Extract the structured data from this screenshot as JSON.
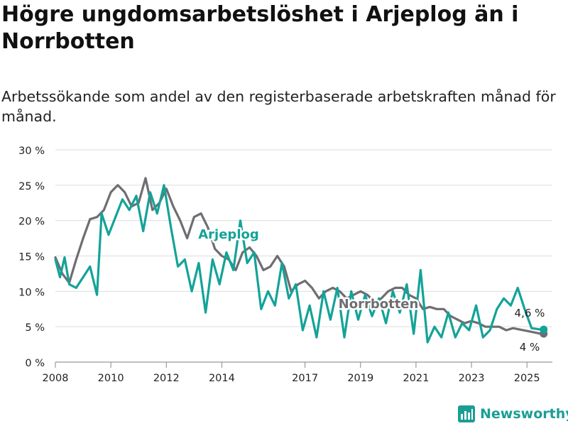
{
  "title": "Högre ungdomsarbetslöshet i Arjeplog än i Norrbotten",
  "subtitle": "Arbetssökande som andel av den registerbaserade arbetskraften månad för månad.",
  "brand": "Newsworthy",
  "colors": {
    "arjeplog": "#13a398",
    "norrbotten": "#6e6e72",
    "grid": "#dddddd",
    "text": "#222222",
    "brand": "#1a9e94"
  },
  "chart_data": {
    "type": "line",
    "yticks": [
      "0 %",
      "5 %",
      "10 %",
      "15 %",
      "20 %",
      "25 %",
      "30 %"
    ],
    "ylim": [
      0,
      30
    ],
    "xlim": [
      "2008-01",
      "2025-12"
    ],
    "xticks": [
      {
        "label": "2008",
        "date": "2008-01"
      },
      {
        "label": "2010",
        "date": "2010-01"
      },
      {
        "label": "2012",
        "date": "2012-01"
      },
      {
        "label": "2014",
        "date": "2014-01"
      },
      {
        "label": "2017",
        "date": "2017-01"
      },
      {
        "label": "2019",
        "date": "2019-01"
      },
      {
        "label": "2021",
        "date": "2021-01"
      },
      {
        "label": "2023",
        "date": "2023-01"
      },
      {
        "label": "2025",
        "date": "2025-01"
      }
    ],
    "grid": true,
    "series": [
      {
        "name": "Norrbotten",
        "end_label": "4 %",
        "data": [
          [
            "2008-01",
            14.8
          ],
          [
            "2008-04",
            12.5
          ],
          [
            "2008-07",
            11.2
          ],
          [
            "2008-10",
            14.5
          ],
          [
            "2009-01",
            17.5
          ],
          [
            "2009-04",
            20.2
          ],
          [
            "2009-07",
            20.5
          ],
          [
            "2009-10",
            21.5
          ],
          [
            "2010-01",
            24.0
          ],
          [
            "2010-04",
            25.0
          ],
          [
            "2010-07",
            24.0
          ],
          [
            "2010-10",
            22.0
          ],
          [
            "2011-01",
            22.5
          ],
          [
            "2011-04",
            26.0
          ],
          [
            "2011-07",
            21.5
          ],
          [
            "2011-10",
            22.5
          ],
          [
            "2012-01",
            24.5
          ],
          [
            "2012-04",
            22.0
          ],
          [
            "2012-07",
            20.0
          ],
          [
            "2012-10",
            17.5
          ],
          [
            "2013-01",
            20.5
          ],
          [
            "2013-04",
            21.0
          ],
          [
            "2013-07",
            19.0
          ],
          [
            "2013-10",
            16.0
          ],
          [
            "2014-01",
            15.0
          ],
          [
            "2014-04",
            14.5
          ],
          [
            "2014-07",
            13.0
          ],
          [
            "2014-10",
            15.5
          ],
          [
            "2015-01",
            16.2
          ],
          [
            "2015-04",
            15.0
          ],
          [
            "2015-07",
            13.0
          ],
          [
            "2015-10",
            13.5
          ],
          [
            "2016-01",
            15.0
          ],
          [
            "2016-04",
            13.5
          ],
          [
            "2016-07",
            10.0
          ],
          [
            "2016-10",
            11.0
          ],
          [
            "2017-01",
            11.5
          ],
          [
            "2017-04",
            10.5
          ],
          [
            "2017-07",
            9.0
          ],
          [
            "2017-10",
            10.0
          ],
          [
            "2018-01",
            10.5
          ],
          [
            "2018-04",
            10.0
          ],
          [
            "2018-07",
            9.0
          ],
          [
            "2018-10",
            9.5
          ],
          [
            "2019-01",
            10.0
          ],
          [
            "2019-04",
            9.5
          ],
          [
            "2019-07",
            8.5
          ],
          [
            "2019-10",
            9.0
          ],
          [
            "2020-01",
            10.0
          ],
          [
            "2020-04",
            10.5
          ],
          [
            "2020-07",
            10.5
          ],
          [
            "2020-10",
            9.5
          ],
          [
            "2021-01",
            9.0
          ],
          [
            "2021-04",
            7.5
          ],
          [
            "2021-07",
            7.8
          ],
          [
            "2021-10",
            7.5
          ],
          [
            "2022-01",
            7.5
          ],
          [
            "2022-04",
            6.5
          ],
          [
            "2022-07",
            6.0
          ],
          [
            "2022-10",
            5.5
          ],
          [
            "2023-01",
            5.8
          ],
          [
            "2023-04",
            5.5
          ],
          [
            "2023-07",
            5.0
          ],
          [
            "2023-10",
            5.0
          ],
          [
            "2024-01",
            5.0
          ],
          [
            "2024-04",
            4.5
          ],
          [
            "2024-07",
            4.8
          ],
          [
            "2024-10",
            4.6
          ],
          [
            "2025-01",
            4.4
          ],
          [
            "2025-04",
            4.2
          ],
          [
            "2025-07",
            4.0
          ]
        ]
      },
      {
        "name": "Arjeplog",
        "end_label": "4,6 %",
        "data": [
          [
            "2008-01",
            14.5
          ],
          [
            "2008-03",
            12.0
          ],
          [
            "2008-05",
            14.8
          ],
          [
            "2008-07",
            11.0
          ],
          [
            "2008-10",
            10.5
          ],
          [
            "2009-01",
            12.0
          ],
          [
            "2009-04",
            13.5
          ],
          [
            "2009-07",
            9.5
          ],
          [
            "2009-09",
            21.0
          ],
          [
            "2009-12",
            18.0
          ],
          [
            "2010-03",
            20.5
          ],
          [
            "2010-06",
            23.0
          ],
          [
            "2010-09",
            21.5
          ],
          [
            "2010-12",
            23.5
          ],
          [
            "2011-03",
            18.5
          ],
          [
            "2011-06",
            24.0
          ],
          [
            "2011-09",
            21.0
          ],
          [
            "2011-12",
            25.0
          ],
          [
            "2012-03",
            19.0
          ],
          [
            "2012-06",
            13.5
          ],
          [
            "2012-09",
            14.5
          ],
          [
            "2012-12",
            10.0
          ],
          [
            "2013-03",
            14.0
          ],
          [
            "2013-06",
            7.0
          ],
          [
            "2013-09",
            14.5
          ],
          [
            "2013-12",
            11.0
          ],
          [
            "2014-03",
            15.5
          ],
          [
            "2014-06",
            13.0
          ],
          [
            "2014-09",
            20.0
          ],
          [
            "2014-12",
            14.0
          ],
          [
            "2015-03",
            15.5
          ],
          [
            "2015-06",
            7.5
          ],
          [
            "2015-09",
            10.0
          ],
          [
            "2015-12",
            8.0
          ],
          [
            "2016-03",
            14.0
          ],
          [
            "2016-06",
            9.0
          ],
          [
            "2016-09",
            11.0
          ],
          [
            "2016-12",
            4.5
          ],
          [
            "2017-03",
            8.0
          ],
          [
            "2017-06",
            3.5
          ],
          [
            "2017-09",
            10.0
          ],
          [
            "2017-12",
            6.0
          ],
          [
            "2018-03",
            10.5
          ],
          [
            "2018-06",
            3.5
          ],
          [
            "2018-09",
            10.0
          ],
          [
            "2018-12",
            6.0
          ],
          [
            "2019-03",
            9.5
          ],
          [
            "2019-06",
            6.5
          ],
          [
            "2019-09",
            9.0
          ],
          [
            "2019-12",
            5.5
          ],
          [
            "2020-03",
            10.0
          ],
          [
            "2020-06",
            7.0
          ],
          [
            "2020-09",
            11.0
          ],
          [
            "2020-12",
            4.0
          ],
          [
            "2021-03",
            13.0
          ],
          [
            "2021-06",
            2.8
          ],
          [
            "2021-09",
            5.0
          ],
          [
            "2021-12",
            3.5
          ],
          [
            "2022-03",
            7.0
          ],
          [
            "2022-06",
            3.5
          ],
          [
            "2022-09",
            5.5
          ],
          [
            "2022-12",
            4.5
          ],
          [
            "2023-03",
            8.0
          ],
          [
            "2023-06",
            3.5
          ],
          [
            "2023-09",
            4.5
          ],
          [
            "2023-12",
            7.5
          ],
          [
            "2024-03",
            9.0
          ],
          [
            "2024-06",
            8.0
          ],
          [
            "2024-09",
            10.5
          ],
          [
            "2024-12",
            7.5
          ],
          [
            "2025-03",
            4.8
          ],
          [
            "2025-07",
            4.6
          ]
        ]
      }
    ]
  }
}
